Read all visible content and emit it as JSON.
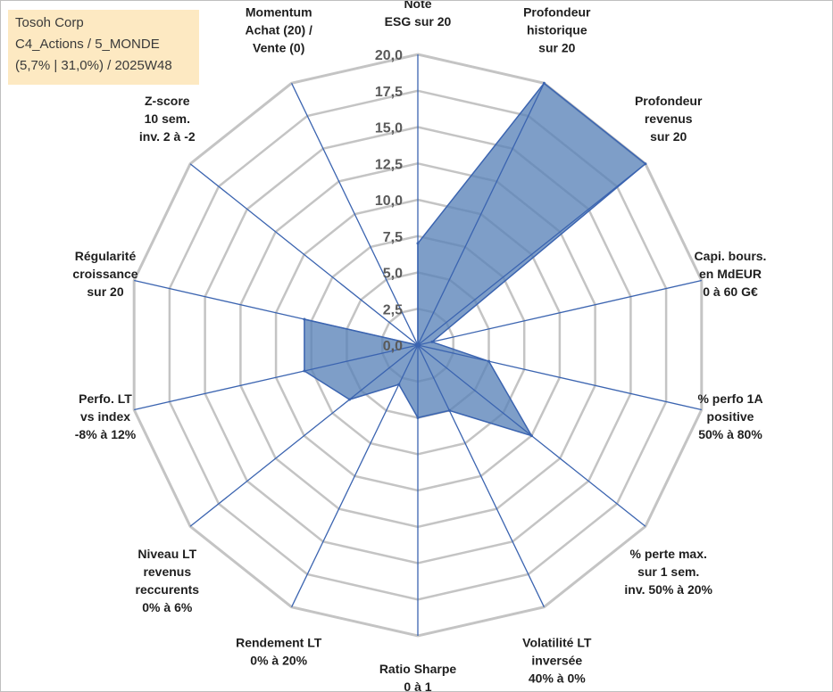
{
  "info_box": {
    "line1": "Tosoh Corp",
    "line2": "C4_Actions / 5_MONDE",
    "line3": "(5,7% | 31,0%) / 2025W48"
  },
  "colors": {
    "grid": "#c4c4c4",
    "spoke": "#3b64b0",
    "fill": "#5a83b8",
    "outline": "#3b64b0"
  },
  "chart_data": {
    "type": "radar",
    "title": "",
    "rmin": 0,
    "rmax": 20,
    "ticks": [
      "0,0",
      "2,5",
      "5,0",
      "7,5",
      "10,0",
      "12,5",
      "15,0",
      "17,5",
      "20,0"
    ],
    "axes": [
      {
        "label": [
          "Note",
          "ESG sur 20"
        ],
        "value": 7.0
      },
      {
        "label": [
          "Profondeur",
          "historique",
          "sur 20"
        ],
        "value": 20.0
      },
      {
        "label": [
          "Profondeur",
          "revenus",
          "sur 20"
        ],
        "value": 20.0
      },
      {
        "label": [
          "Capi. bours.",
          "en MdEUR",
          "0 à 60 G€"
        ],
        "value": 1.0
      },
      {
        "label": [
          "% perfo 1A",
          "positive",
          "50% à 80%"
        ],
        "value": 5.0
      },
      {
        "label": [
          "% perte max.",
          "sur 1 sem.",
          "inv. 50% à 20%"
        ],
        "value": 10.0
      },
      {
        "label": [
          "Volatilité LT",
          "inversée",
          "40% à 0%"
        ],
        "value": 5.0
      },
      {
        "label": [
          "Ratio Sharpe",
          "0 à 1"
        ],
        "value": 5.0
      },
      {
        "label": [
          "Rendement LT",
          "0% à 20%"
        ],
        "value": 3.0
      },
      {
        "label": [
          "Niveau LT",
          "revenus",
          "reccurents",
          "0% à 6%"
        ],
        "value": 6.0
      },
      {
        "label": [
          "Perfo. LT",
          "vs index",
          "-8% à 12%"
        ],
        "value": 8.0
      },
      {
        "label": [
          "Régularité",
          "croissance",
          "sur 20"
        ],
        "value": 8.0
      },
      {
        "label": [
          "Z-score",
          "10 sem.",
          "inv. 2 à -2"
        ],
        "value": 0.0
      },
      {
        "label": [
          "Momentum",
          "Achat (20) /",
          "Vente (0)"
        ],
        "value": 0.0
      }
    ]
  }
}
